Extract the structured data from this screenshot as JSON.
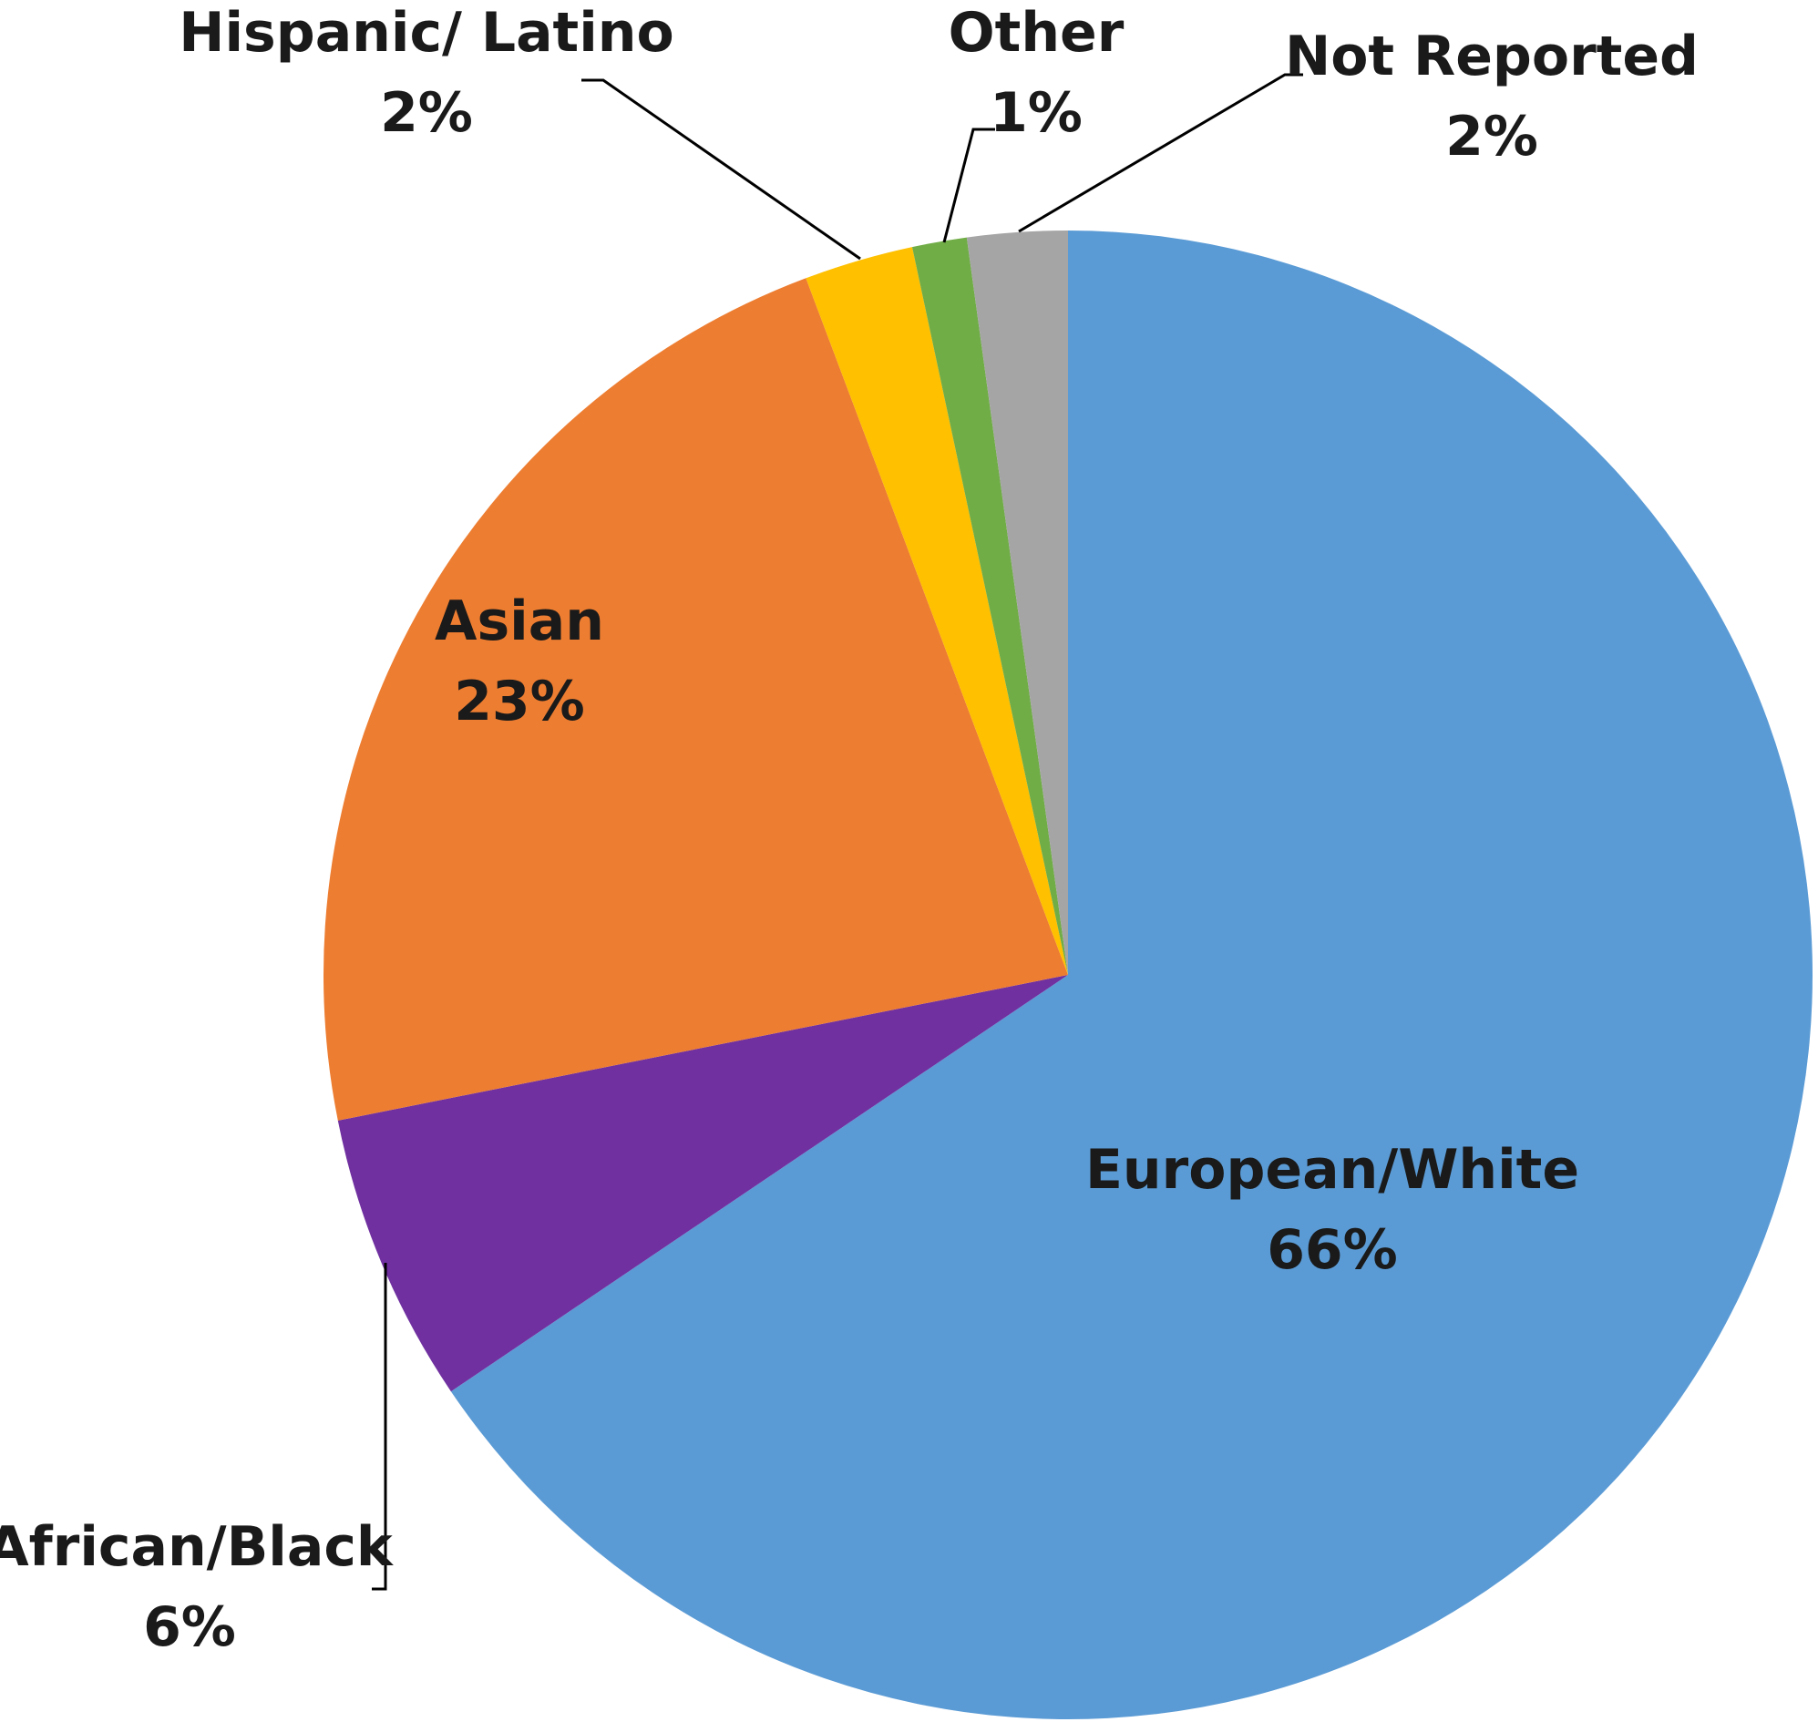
{
  "chart_data": {
    "type": "pie",
    "title": "",
    "start_angle_deg": 0,
    "direction": "clockwise",
    "slices": [
      {
        "key": "european_white",
        "label": "European/White",
        "value_label": "66%",
        "value": 66.4,
        "color": "#5B9BD5"
      },
      {
        "key": "african_black",
        "label": "African/Black",
        "value_label": "6%",
        "value": 6.4,
        "color": "#7030A0"
      },
      {
        "key": "asian",
        "label": "Asian",
        "value_label": "23%",
        "value": 22.7,
        "color": "#ED7D31"
      },
      {
        "key": "hispanic_latino",
        "label": "Hispanic/ Latino",
        "value_label": "2%",
        "value": 2.4,
        "color": "#FFC000"
      },
      {
        "key": "other",
        "label": "Other",
        "value_label": "1%",
        "value": 1.2,
        "color": "#70AD47"
      },
      {
        "key": "not_reported",
        "label": "Not Reported",
        "value_label": "2%",
        "value": 2.2,
        "color": "#A5A5A5"
      }
    ]
  }
}
